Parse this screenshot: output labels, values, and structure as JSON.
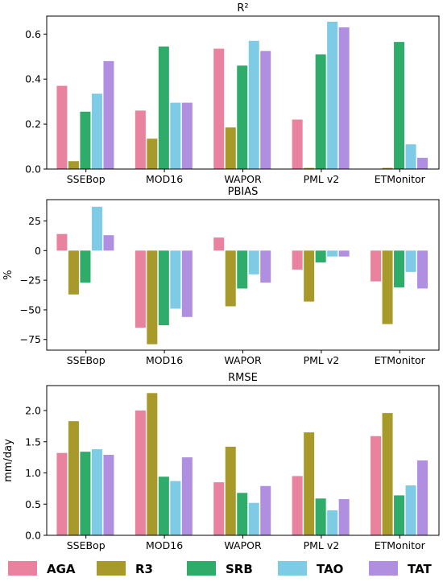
{
  "series_colors": {
    "AGA": "#e8829e",
    "R3": "#a89a2a",
    "SRB": "#2fab6a",
    "TAO": "#7ecbe6",
    "TAT": "#b18fe0"
  },
  "legend": [
    "AGA",
    "R3",
    "SRB",
    "TAO",
    "TAT"
  ],
  "chart_data": [
    {
      "type": "bar",
      "title": "R²",
      "ylabel": "",
      "categories": [
        "SSEBop",
        "MOD16",
        "WAPOR",
        "PML v2",
        "ETMonitor"
      ],
      "yticks": [
        "0.0",
        "0.2",
        "0.4",
        "0.6"
      ],
      "ytick_values": [
        0,
        0.2,
        0.4,
        0.6
      ],
      "ylim": [
        0,
        0.68
      ],
      "series": [
        {
          "name": "AGA",
          "values": [
            0.37,
            0.26,
            0.535,
            0.22,
            0.0
          ]
        },
        {
          "name": "R3",
          "values": [
            0.035,
            0.135,
            0.185,
            0.005,
            0.005
          ]
        },
        {
          "name": "SRB",
          "values": [
            0.255,
            0.545,
            0.46,
            0.51,
            0.565
          ]
        },
        {
          "name": "TAO",
          "values": [
            0.335,
            0.295,
            0.57,
            0.655,
            0.11
          ]
        },
        {
          "name": "TAT",
          "values": [
            0.48,
            0.295,
            0.525,
            0.63,
            0.05
          ]
        }
      ]
    },
    {
      "type": "bar",
      "title": "PBIAS",
      "ylabel": "%",
      "categories": [
        "SSEBop",
        "MOD16",
        "WAPOR",
        "PML v2",
        "ETMonitor"
      ],
      "yticks": [
        "25",
        "0",
        "−25",
        "−50",
        "−75"
      ],
      "ytick_values": [
        25,
        0,
        -25,
        -50,
        -75
      ],
      "ylim": [
        -84,
        43
      ],
      "series": [
        {
          "name": "AGA",
          "values": [
            14,
            -65,
            11,
            -16,
            -26
          ]
        },
        {
          "name": "R3",
          "values": [
            -37,
            -79,
            -47,
            -43,
            -62
          ]
        },
        {
          "name": "SRB",
          "values": [
            -27,
            -63,
            -32,
            -10,
            -31
          ]
        },
        {
          "name": "TAO",
          "values": [
            37,
            -49,
            -20,
            -5,
            -18
          ]
        },
        {
          "name": "TAT",
          "values": [
            13,
            -56,
            -27,
            -5,
            -32
          ]
        }
      ]
    },
    {
      "type": "bar",
      "title": "RMSE",
      "ylabel": "mm/day",
      "categories": [
        "SSEBop",
        "MOD16",
        "WAPOR",
        "PML v2",
        "ETMonitor"
      ],
      "yticks": [
        "0.0",
        "0.5",
        "1.0",
        "1.5",
        "2.0"
      ],
      "ytick_values": [
        0,
        0.5,
        1.0,
        1.5,
        2.0
      ],
      "ylim": [
        0,
        2.4
      ],
      "series": [
        {
          "name": "AGA",
          "values": [
            1.32,
            2.0,
            0.85,
            0.95,
            1.59
          ]
        },
        {
          "name": "R3",
          "values": [
            1.83,
            2.28,
            1.42,
            1.65,
            1.96
          ]
        },
        {
          "name": "SRB",
          "values": [
            1.34,
            0.94,
            0.68,
            0.59,
            0.64
          ]
        },
        {
          "name": "TAO",
          "values": [
            1.38,
            0.87,
            0.52,
            0.4,
            0.8
          ]
        },
        {
          "name": "TAT",
          "values": [
            1.29,
            1.25,
            0.79,
            0.58,
            1.2
          ]
        }
      ]
    }
  ]
}
